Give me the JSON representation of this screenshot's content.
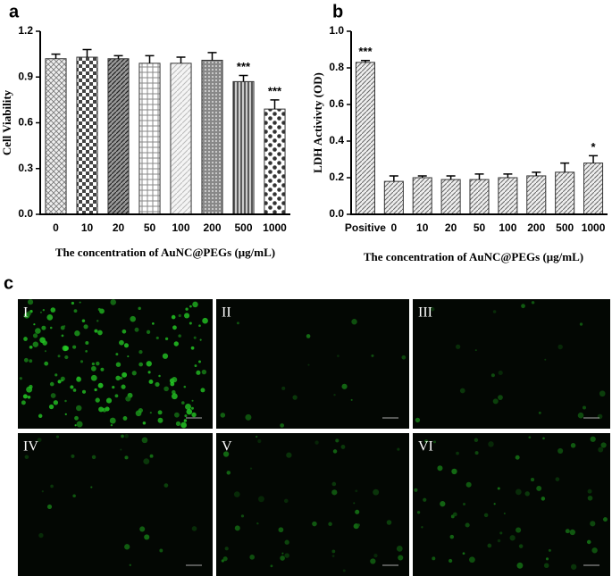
{
  "chart_data": [
    {
      "type": "bar",
      "panel": "a",
      "y_label": "Cell Viability",
      "x_label": "The concentration of AuNC@PEGs (μg/mL)",
      "categories": [
        "0",
        "10",
        "20",
        "50",
        "100",
        "200",
        "500",
        "1000"
      ],
      "values": [
        1.02,
        1.03,
        1.02,
        0.99,
        0.99,
        1.01,
        0.87,
        0.69
      ],
      "errors": [
        0.03,
        0.05,
        0.02,
        0.05,
        0.04,
        0.05,
        0.04,
        0.06
      ],
      "value_annotations": [
        null,
        null,
        null,
        null,
        null,
        null,
        "***",
        "***"
      ],
      "ylim": [
        0,
        1.2
      ],
      "yticks": [
        {
          "value": 0,
          "label": "0.0"
        },
        0.3,
        0.6,
        0.9,
        1.2
      ]
    },
    {
      "type": "bar",
      "panel": "b",
      "y_label": "LDH Activivty (OD)",
      "x_label": "The concentration of AuNC@PEGs (μg/mL)",
      "categories": [
        "Positive",
        "0",
        "10",
        "20",
        "50",
        "100",
        "200",
        "500",
        "1000"
      ],
      "values": [
        0.83,
        0.18,
        0.2,
        0.19,
        0.19,
        0.2,
        0.21,
        0.23,
        0.28
      ],
      "errors": [
        0.01,
        0.03,
        0.01,
        0.02,
        0.03,
        0.02,
        0.02,
        0.05,
        0.04
      ],
      "value_annotations": [
        "***",
        null,
        null,
        null,
        null,
        null,
        null,
        null,
        "*"
      ],
      "ylim": [
        0,
        1.0
      ],
      "yticks": [
        {
          "value": 0,
          "label": "0.0"
        },
        0.2,
        0.4,
        0.6,
        0.8,
        {
          "value": 1.0,
          "label": "1.0"
        }
      ]
    }
  ],
  "panel_c": {
    "label": "c",
    "images": [
      "I",
      "II",
      "III",
      "IV",
      "V",
      "VI"
    ]
  }
}
